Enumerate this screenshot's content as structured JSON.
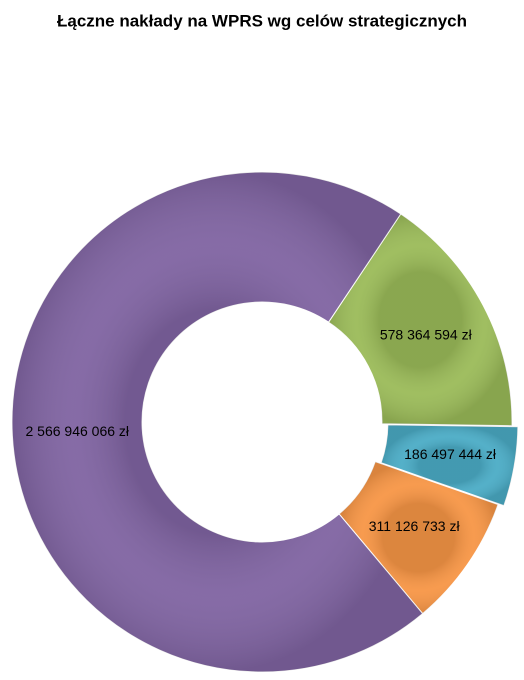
{
  "chart_data": {
    "type": "donut",
    "title": "Łączne nakłady na WPRS wg celów strategicznych",
    "values": [
      578364594,
      186497444,
      311126733,
      2566946066
    ],
    "value_labels": [
      "578 364 594 zł",
      "186 497 444 zł",
      "311 126 733 zł",
      "2 566 946 066 zł"
    ],
    "colors": [
      "#9bbb59",
      "#4bacc6",
      "#f79646",
      "#8064a2"
    ]
  }
}
